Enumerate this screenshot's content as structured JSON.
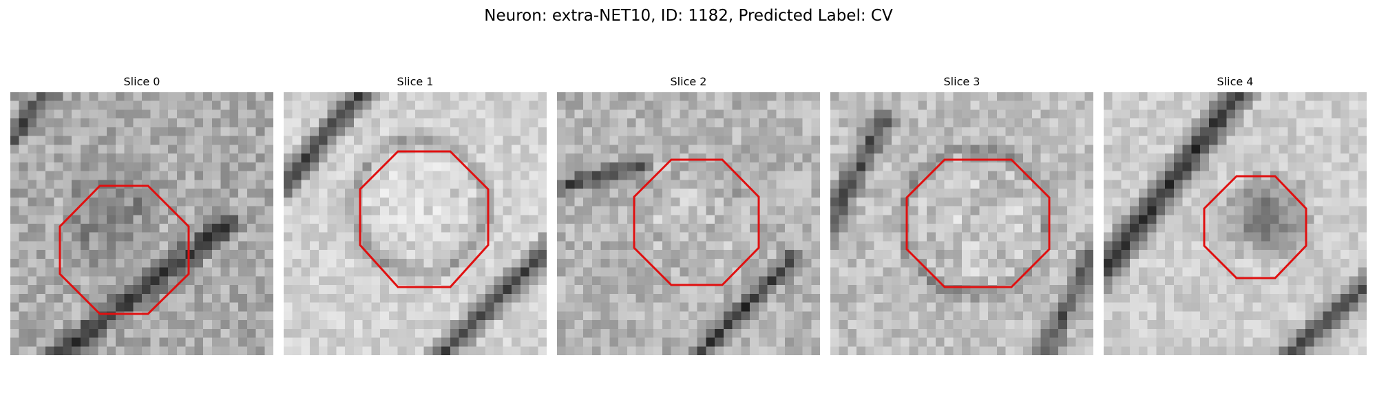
{
  "figure": {
    "title": "Neuron: extra-NET10, ID: 1182, Predicted Label: CV"
  },
  "panels": [
    {
      "title": "Slice 0"
    },
    {
      "title": "Slice 1"
    },
    {
      "title": "Slice 2"
    },
    {
      "title": "Slice 3"
    },
    {
      "title": "Slice 4"
    }
  ],
  "colors": {
    "roi_outline": "#e01010",
    "background": "#ffffff",
    "image_dark": "#1a1a1a",
    "image_light": "#f2f2f2"
  },
  "image_style": "grayscale pixelated microscopy crop with red octagonal ROI outline"
}
